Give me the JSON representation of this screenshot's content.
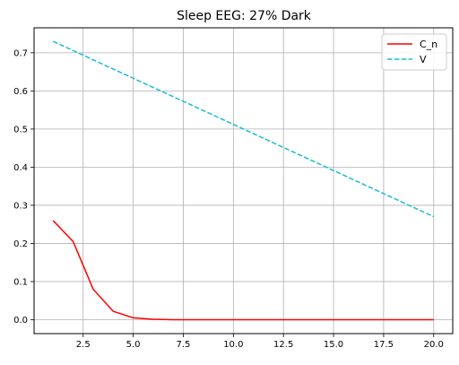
{
  "chart_data": {
    "type": "line",
    "title": "Sleep EEG: 27% Dark",
    "xlabel": "",
    "ylabel": "",
    "xlim": [
      0.05,
      20.95
    ],
    "ylim": [
      -0.0365,
      0.7655
    ],
    "xticks": [
      2.5,
      5.0,
      7.5,
      10.0,
      12.5,
      15.0,
      17.5,
      20.0
    ],
    "xtick_labels": [
      "2.5",
      "5.0",
      "7.5",
      "10.0",
      "12.5",
      "15.0",
      "17.5",
      "20.0"
    ],
    "yticks": [
      0.0,
      0.1,
      0.2,
      0.3,
      0.4,
      0.5,
      0.6,
      0.7
    ],
    "ytick_labels": [
      "0.0",
      "0.1",
      "0.2",
      "0.3",
      "0.4",
      "0.5",
      "0.6",
      "0.7"
    ],
    "grid": true,
    "legend_position": "top-right",
    "x": [
      1,
      2,
      3,
      4,
      5,
      6,
      7,
      8,
      9,
      10,
      11,
      12,
      13,
      14,
      15,
      16,
      17,
      18,
      19,
      20
    ],
    "series": [
      {
        "name": "C_n",
        "color": "#ff0000",
        "style": "solid",
        "values": [
          0.26,
          0.205,
          0.08,
          0.022,
          0.005,
          0.001,
          0.0,
          0.0,
          0.0,
          0.0,
          0.0,
          0.0,
          0.0,
          0.0,
          0.0,
          0.0,
          0.0,
          0.0,
          0.0,
          0.0
        ]
      },
      {
        "name": "V",
        "color": "#17becf",
        "style": "dashed",
        "values": [
          0.73,
          0.7058,
          0.6816,
          0.6574,
          0.6332,
          0.609,
          0.5848,
          0.5606,
          0.5364,
          0.5122,
          0.488,
          0.4638,
          0.4396,
          0.4154,
          0.3912,
          0.367,
          0.3428,
          0.3186,
          0.2944,
          0.2702
        ]
      }
    ]
  }
}
